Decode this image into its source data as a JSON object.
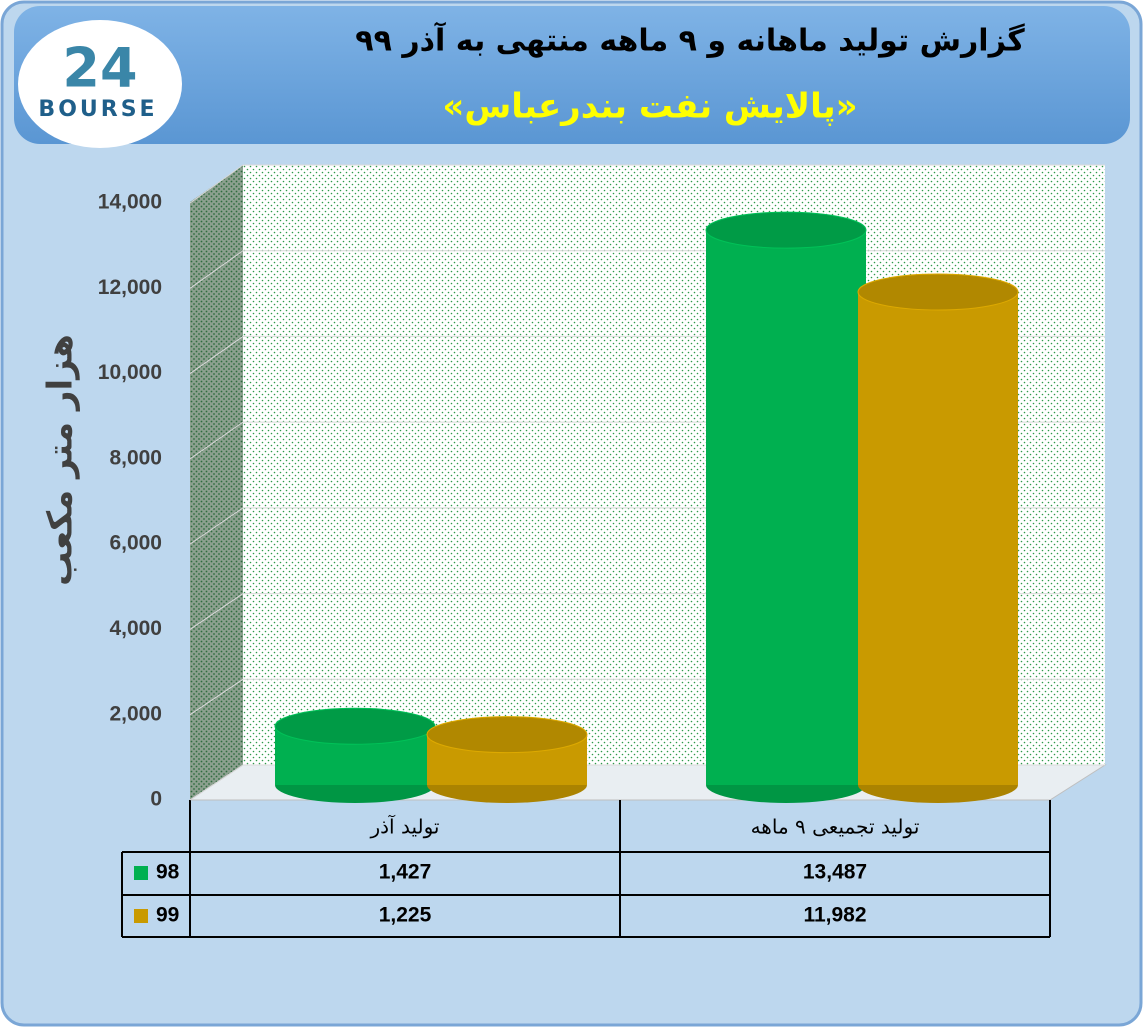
{
  "logo": {
    "mark": "24",
    "name": "BOURSE"
  },
  "chart_data": {
    "type": "bar",
    "title": "گزارش تولید ماهانه و ۹ ماهه منتهی به آذر ۹۹",
    "subtitle": "«پالایش نفت بندرعباس»",
    "y_label": "هزار متر مکعب",
    "categories": [
      "تولید آذر",
      "تولید تجمیعی ۹ ماهه"
    ],
    "series": [
      {
        "name": "98",
        "color": "#00b050",
        "values": [
          1427,
          13487
        ],
        "value_labels": [
          "1,427",
          "13,487"
        ]
      },
      {
        "name": "99",
        "color": "#c99a00",
        "values": [
          1225,
          11982
        ],
        "value_labels": [
          "1,225",
          "11,982"
        ]
      }
    ],
    "ylim": [
      0,
      14000
    ],
    "yticks": [
      0,
      {
        "value": 2000,
        "label": "2,000"
      },
      {
        "value": 4000,
        "label": "4,000"
      },
      {
        "value": 6000,
        "label": "6,000"
      },
      {
        "value": 8000,
        "label": "8,000"
      },
      {
        "value": 10000,
        "label": "10,000"
      },
      {
        "value": 12000,
        "label": "12,000"
      },
      {
        "value": 14000,
        "label": "14,000"
      }
    ],
    "grid": true
  }
}
